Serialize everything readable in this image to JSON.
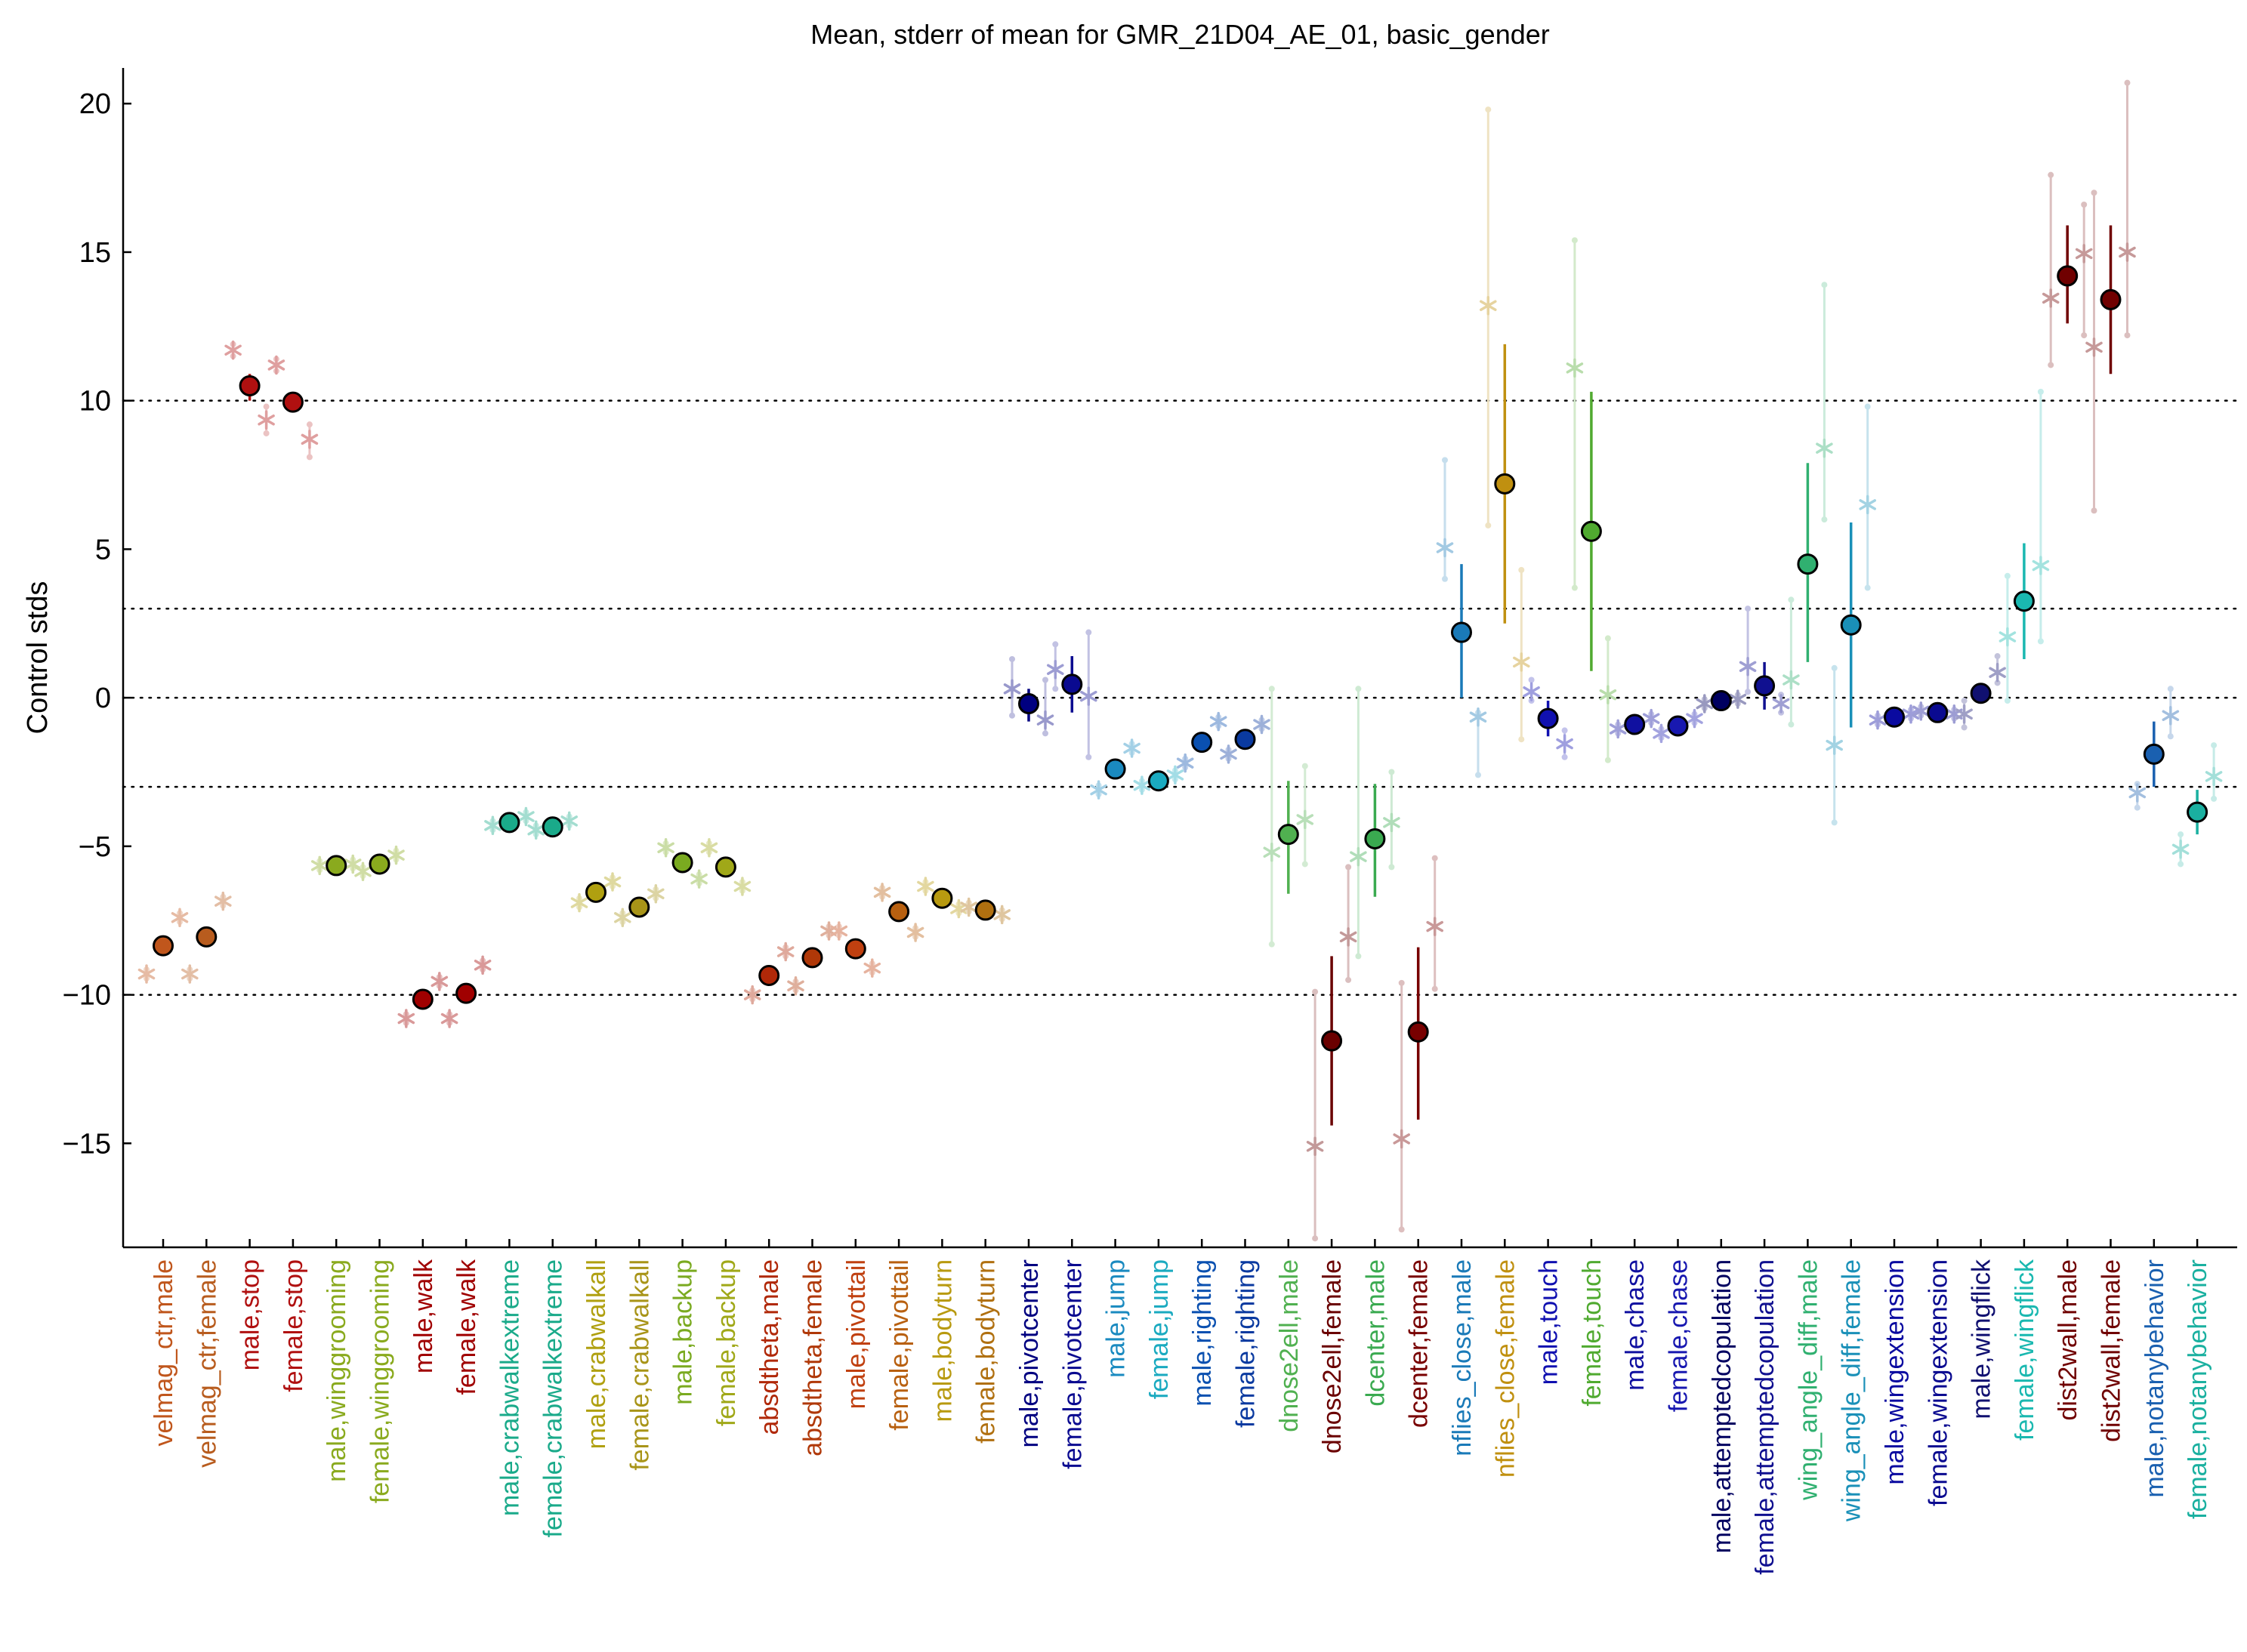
{
  "chart_data": {
    "type": "scatter",
    "title": "Mean, stderr of mean for GMR_21D04_AE_01, basic_gender",
    "xlabel": "",
    "ylabel": "Control stds",
    "ylim": [
      -18.5,
      21.2
    ],
    "yticks": [
      -15,
      -10,
      -5,
      0,
      5,
      10,
      15,
      20
    ],
    "reference_lines": [
      -10,
      -3,
      0,
      3,
      10
    ],
    "grid": false,
    "legend": "none",
    "categories": [
      "velmag_ctr,male",
      "velmag_ctr,female",
      "male,stop",
      "female,stop",
      "male,winggrooming",
      "female,winggrooming",
      "male,walk",
      "female,walk",
      "male,crabwalkextreme",
      "female,crabwalkextreme",
      "male,crabwalkall",
      "female,crabwalkall",
      "male,backup",
      "female,backup",
      "absdtheta,male",
      "absdtheta,female",
      "male,pivottail",
      "female,pivottail",
      "male,bodyturn",
      "female,bodyturn",
      "male,pivotcenter",
      "female,pivotcenter",
      "male,jump",
      "female,jump",
      "male,righting",
      "female,righting",
      "dnose2ell,male",
      "dnose2ell,female",
      "dcenter,male",
      "dcenter,female",
      "nflies_close,male",
      "nflies_close,female",
      "male,touch",
      "female,touch",
      "male,chase",
      "female,chase",
      "male,attemptedcopulation",
      "female,attemptedcopulation",
      "wing_angle_diff,male",
      "wing_angle_diff,female",
      "male,wingextension",
      "female,wingextension",
      "male,wingflick",
      "female,wingflick",
      "dist2wall,male",
      "dist2wall,female",
      "male,notanybehavior",
      "female,notanybehavior"
    ],
    "colors": [
      "#c0561c",
      "#b85c1e",
      "#b01010",
      "#b01010",
      "#8aaa1e",
      "#8aaa1e",
      "#a00000",
      "#a00000",
      "#1aaa8a",
      "#1aaa8a",
      "#b0a010",
      "#a89418",
      "#7aaa20",
      "#a0a818",
      "#b02808",
      "#b03808",
      "#c04010",
      "#b86010",
      "#b89a10",
      "#b07010",
      "#000080",
      "#0a0a90",
      "#1a8ac0",
      "#1aaac0",
      "#0a50b0",
      "#0a3aa0",
      "#50b050",
      "#6a0000",
      "#3aaa50",
      "#780000",
      "#1a7ab8",
      "#c09010",
      "#1010b0",
      "#50aa30",
      "#1010a0",
      "#1818b0",
      "#000060",
      "#101090",
      "#30b070",
      "#1a90b8",
      "#0a0aa0",
      "#0a0a90",
      "#101070",
      "#1ab8b0",
      "#700000",
      "#700000",
      "#1a60b0",
      "#1ab0a0"
    ],
    "means": [
      -8.35,
      -8.05,
      10.5,
      9.95,
      -5.65,
      -5.6,
      -10.15,
      -9.95,
      -4.2,
      -4.35,
      -6.55,
      -7.05,
      -5.55,
      -5.7,
      -9.35,
      -8.75,
      -8.45,
      -7.2,
      -6.75,
      -7.15,
      -0.2,
      0.45,
      -2.4,
      -2.8,
      -1.5,
      -1.4,
      -4.6,
      -11.55,
      -4.75,
      -11.25,
      2.2,
      7.2,
      -0.7,
      5.6,
      -0.9,
      -0.95,
      -0.1,
      0.4,
      4.5,
      2.45,
      -0.65,
      -0.5,
      0.15,
      3.25,
      14.2,
      13.4,
      -1.9,
      -3.85
    ],
    "sem_low": [
      -8.5,
      -8.2,
      10.0,
      9.7,
      -5.75,
      -5.7,
      -10.3,
      -10.1,
      -4.3,
      -4.45,
      -6.65,
      -7.15,
      -5.65,
      -5.8,
      -9.5,
      -8.9,
      -8.6,
      -7.3,
      -6.85,
      -7.25,
      -0.8,
      -0.5,
      -2.5,
      -2.9,
      -1.6,
      -1.5,
      -6.6,
      -14.4,
      -6.7,
      -14.2,
      0.0,
      2.5,
      -1.3,
      0.9,
      -1.0,
      -1.05,
      -0.2,
      -0.4,
      1.2,
      -1.0,
      -0.75,
      -0.6,
      -0.1,
      1.3,
      12.6,
      10.9,
      -3.0,
      -4.6
    ],
    "sem_high": [
      -8.2,
      -7.9,
      10.9,
      10.2,
      -5.55,
      -5.5,
      -10.0,
      -9.8,
      -4.1,
      -4.25,
      -6.45,
      -6.95,
      -5.45,
      -5.6,
      -9.2,
      -8.6,
      -8.3,
      -7.1,
      -6.65,
      -7.05,
      0.3,
      1.4,
      -2.3,
      -2.7,
      -1.4,
      -1.3,
      -2.8,
      -8.7,
      -2.9,
      -8.4,
      4.5,
      11.9,
      -0.1,
      10.3,
      -0.8,
      -0.85,
      0.0,
      1.2,
      7.9,
      5.9,
      -0.55,
      -0.4,
      0.4,
      5.2,
      15.9,
      15.9,
      -0.8,
      -3.1
    ],
    "reps": [
      [
        -9.3,
        -7.4
      ],
      [
        -9.3,
        -6.85
      ],
      [
        11.7,
        9.35
      ],
      [
        11.2,
        8.7
      ],
      [
        -5.65,
        -5.6
      ],
      [
        -5.85,
        -5.3
      ],
      [
        -10.8,
        -9.55
      ],
      [
        -10.8,
        -9.0
      ],
      [
        -4.3,
        -4.0
      ],
      [
        -4.45,
        -4.15
      ],
      [
        -6.9,
        -6.2
      ],
      [
        -7.4,
        -6.6
      ],
      [
        -5.05,
        -6.1
      ],
      [
        -5.05,
        -6.35
      ],
      [
        -10.0,
        -8.55
      ],
      [
        -9.7,
        -7.85
      ],
      [
        -7.85,
        -9.1
      ],
      [
        -6.55,
        -7.9
      ],
      [
        -6.35,
        -7.1
      ],
      [
        -7.05,
        -7.3
      ],
      [
        0.3,
        -0.75
      ],
      [
        0.95,
        0.05
      ],
      [
        -3.1,
        -1.7
      ],
      [
        -2.95,
        -2.6
      ],
      [
        -2.2,
        -0.8
      ],
      [
        -1.9,
        -0.9
      ],
      [
        -5.2,
        -4.1
      ],
      [
        -15.1,
        -8.05
      ],
      [
        -5.35,
        -4.2
      ],
      [
        -14.85,
        -7.7
      ],
      [
        5.05,
        -0.65
      ],
      [
        13.2,
        1.2
      ],
      [
        0.2,
        -1.55
      ],
      [
        11.1,
        0.1
      ],
      [
        -1.05,
        -0.7
      ],
      [
        -1.2,
        -0.7
      ],
      [
        -0.2,
        -0.05
      ],
      [
        1.05,
        -0.2
      ],
      [
        0.6,
        8.4
      ],
      [
        -1.6,
        6.5
      ],
      [
        -0.75,
        -0.55
      ],
      [
        -0.45,
        -0.55
      ],
      [
        -0.55,
        0.85
      ],
      [
        2.05,
        4.45
      ],
      [
        13.45,
        14.95
      ],
      [
        11.8,
        15.0
      ],
      [
        -3.2,
        -0.6
      ],
      [
        -5.1,
        -2.65
      ]
    ],
    "rep_whiskers": [
      [
        [
          -9.45,
          -9.15
        ],
        [
          -7.55,
          -7.25
        ]
      ],
      [
        [
          -9.45,
          -9.15
        ],
        [
          -7.0,
          -6.7
        ]
      ],
      [
        [
          11.9,
          11.5
        ],
        [
          9.8,
          8.9
        ]
      ],
      [
        [
          11.4,
          11.0
        ],
        [
          9.2,
          8.1
        ]
      ],
      [
        [
          -5.8,
          -5.5
        ],
        [
          -5.75,
          -5.45
        ]
      ],
      [
        [
          -6.0,
          -5.7
        ],
        [
          -5.45,
          -5.15
        ]
      ],
      [
        [
          -10.95,
          -10.65
        ],
        [
          -9.7,
          -9.4
        ]
      ],
      [
        [
          -10.95,
          -10.65
        ],
        [
          -9.15,
          -8.85
        ]
      ],
      [
        [
          -4.45,
          -4.15
        ],
        [
          -4.15,
          -3.85
        ]
      ],
      [
        [
          -4.6,
          -4.3
        ],
        [
          -4.3,
          -4.0
        ]
      ],
      [
        [
          -7.05,
          -6.75
        ],
        [
          -6.35,
          -6.05
        ]
      ],
      [
        [
          -7.55,
          -7.25
        ],
        [
          -6.75,
          -6.45
        ]
      ],
      [
        [
          -5.2,
          -4.9
        ],
        [
          -6.25,
          -5.95
        ]
      ],
      [
        [
          -5.2,
          -4.9
        ],
        [
          -6.5,
          -6.2
        ]
      ],
      [
        [
          -10.15,
          -9.85
        ],
        [
          -8.7,
          -8.4
        ]
      ],
      [
        [
          -9.85,
          -9.55
        ],
        [
          -8.0,
          -7.7
        ]
      ],
      [
        [
          -8.0,
          -7.7
        ],
        [
          -9.25,
          -8.95
        ]
      ],
      [
        [
          -6.7,
          -6.4
        ],
        [
          -8.05,
          -7.75
        ]
      ],
      [
        [
          -6.5,
          -6.2
        ],
        [
          -7.25,
          -6.95
        ]
      ],
      [
        [
          -7.2,
          -6.9
        ],
        [
          -7.45,
          -7.15
        ]
      ],
      [
        [
          -0.6,
          1.3
        ],
        [
          -1.2,
          0.6
        ]
      ],
      [
        [
          0.3,
          1.8
        ],
        [
          -2.0,
          2.2
        ]
      ],
      [
        [
          -3.25,
          -2.95
        ],
        [
          -1.85,
          -1.55
        ]
      ],
      [
        [
          -3.1,
          -2.8
        ],
        [
          -2.75,
          -2.45
        ]
      ],
      [
        [
          -2.35,
          -2.05
        ],
        [
          -0.95,
          -0.65
        ]
      ],
      [
        [
          -2.05,
          -1.75
        ],
        [
          -1.05,
          -0.75
        ]
      ],
      [
        [
          -8.3,
          0.3
        ],
        [
          -5.6,
          -2.3
        ]
      ],
      [
        [
          -18.2,
          -9.9
        ],
        [
          -9.5,
          -5.7
        ]
      ],
      [
        [
          -8.7,
          0.3
        ],
        [
          -5.7,
          -2.5
        ]
      ],
      [
        [
          -17.9,
          -9.6
        ],
        [
          -9.8,
          -5.4
        ]
      ],
      [
        [
          4.0,
          8.0
        ],
        [
          -2.6,
          -0.5
        ]
      ],
      [
        [
          5.8,
          19.8
        ],
        [
          -1.4,
          4.3
        ]
      ],
      [
        [
          -0.1,
          0.6
        ],
        [
          -2.0,
          -1.1
        ]
      ],
      [
        [
          3.7,
          15.4
        ],
        [
          -2.1,
          2.0
        ]
      ],
      [
        [
          -1.2,
          -0.9
        ],
        [
          -0.85,
          -0.55
        ]
      ],
      [
        [
          -1.35,
          -1.05
        ],
        [
          -0.85,
          -0.55
        ]
      ],
      [
        [
          -0.35,
          -0.05
        ],
        [
          -0.2,
          0.1
        ]
      ],
      [
        [
          0.2,
          3.0
        ],
        [
          -0.5,
          0.1
        ]
      ],
      [
        [
          -0.9,
          3.3
        ],
        [
          6.0,
          13.9
        ]
      ],
      [
        [
          -4.2,
          1.0
        ],
        [
          3.7,
          9.8
        ]
      ],
      [
        [
          -0.9,
          -0.6
        ],
        [
          -0.7,
          -0.4
        ]
      ],
      [
        [
          -0.6,
          -0.3
        ],
        [
          -0.7,
          -0.4
        ]
      ],
      [
        [
          -1.0,
          -0.1
        ],
        [
          0.5,
          1.4
        ]
      ],
      [
        [
          -0.1,
          4.1
        ],
        [
          1.9,
          10.3
        ]
      ],
      [
        [
          11.2,
          17.6
        ],
        [
          12.2,
          16.6
        ]
      ],
      [
        [
          6.3,
          17.0
        ],
        [
          12.2,
          20.7
        ]
      ],
      [
        [
          -3.7,
          -2.9
        ],
        [
          -1.3,
          0.3
        ]
      ],
      [
        [
          -5.6,
          -4.6
        ],
        [
          -3.4,
          -1.6
        ]
      ]
    ]
  }
}
